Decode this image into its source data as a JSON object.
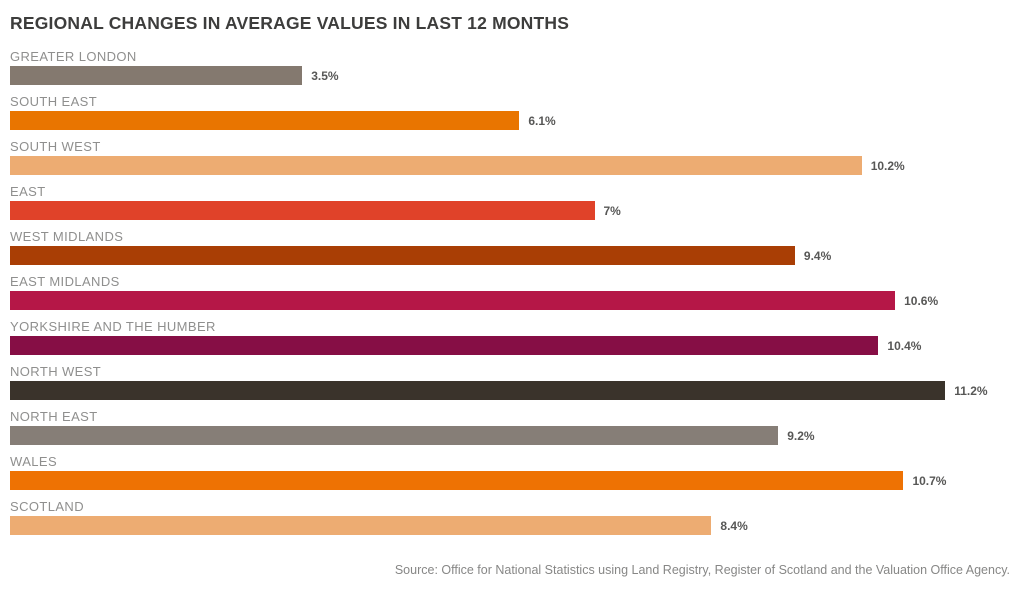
{
  "chart_data": {
    "type": "bar",
    "orientation": "horizontal",
    "title": "REGIONAL CHANGES IN AVERAGE VALUES IN LAST 12 MONTHS",
    "xlabel": "",
    "ylabel": "",
    "xlim": [
      0,
      12
    ],
    "grid": false,
    "legend": false,
    "categories": [
      "GREATER LONDON",
      "SOUTH EAST",
      "SOUTH WEST",
      "EAST",
      "WEST MIDLANDS",
      "EAST MIDLANDS",
      "YORKSHIRE AND THE HUMBER",
      "NORTH WEST",
      "NORTH EAST",
      "WALES",
      "SCOTLAND"
    ],
    "values": [
      3.5,
      6.1,
      10.2,
      7,
      9.4,
      10.6,
      10.4,
      11.2,
      9.2,
      10.7,
      8.4
    ],
    "bars": [
      {
        "label": "GREATER LONDON",
        "value": 3.5,
        "display": "3.5%",
        "color": "#84796f"
      },
      {
        "label": "SOUTH EAST",
        "value": 6.1,
        "display": "6.1%",
        "color": "#e97500"
      },
      {
        "label": "SOUTH WEST",
        "value": 10.2,
        "display": "10.2%",
        "color": "#edac72"
      },
      {
        "label": "EAST",
        "value": 7,
        "display": "7%",
        "color": "#e04229"
      },
      {
        "label": "WEST MIDLANDS",
        "value": 9.4,
        "display": "9.4%",
        "color": "#a93e05"
      },
      {
        "label": "EAST MIDLANDS",
        "value": 10.6,
        "display": "10.6%",
        "color": "#b51747"
      },
      {
        "label": "YORKSHIRE AND THE HUMBER",
        "value": 10.4,
        "display": "10.4%",
        "color": "#860e45"
      },
      {
        "label": "NORTH WEST",
        "value": 11.2,
        "display": "11.2%",
        "color": "#3a332b"
      },
      {
        "label": "NORTH EAST",
        "value": 9.2,
        "display": "9.2%",
        "color": "#867e77"
      },
      {
        "label": "WALES",
        "value": 10.7,
        "display": "10.7%",
        "color": "#ee7203"
      },
      {
        "label": "SCOTLAND",
        "value": 8.4,
        "display": "8.4%",
        "color": "#edac72"
      }
    ],
    "source": "Source: Office for National Statistics using Land Registry, Register of Scotland and the Valuation Office Agency."
  },
  "colors": {
    "title_text": "#3d3d3c",
    "label_text": "#8f8f8e",
    "value_text": "#575756",
    "source_text": "#878786",
    "background": "#ffffff"
  }
}
